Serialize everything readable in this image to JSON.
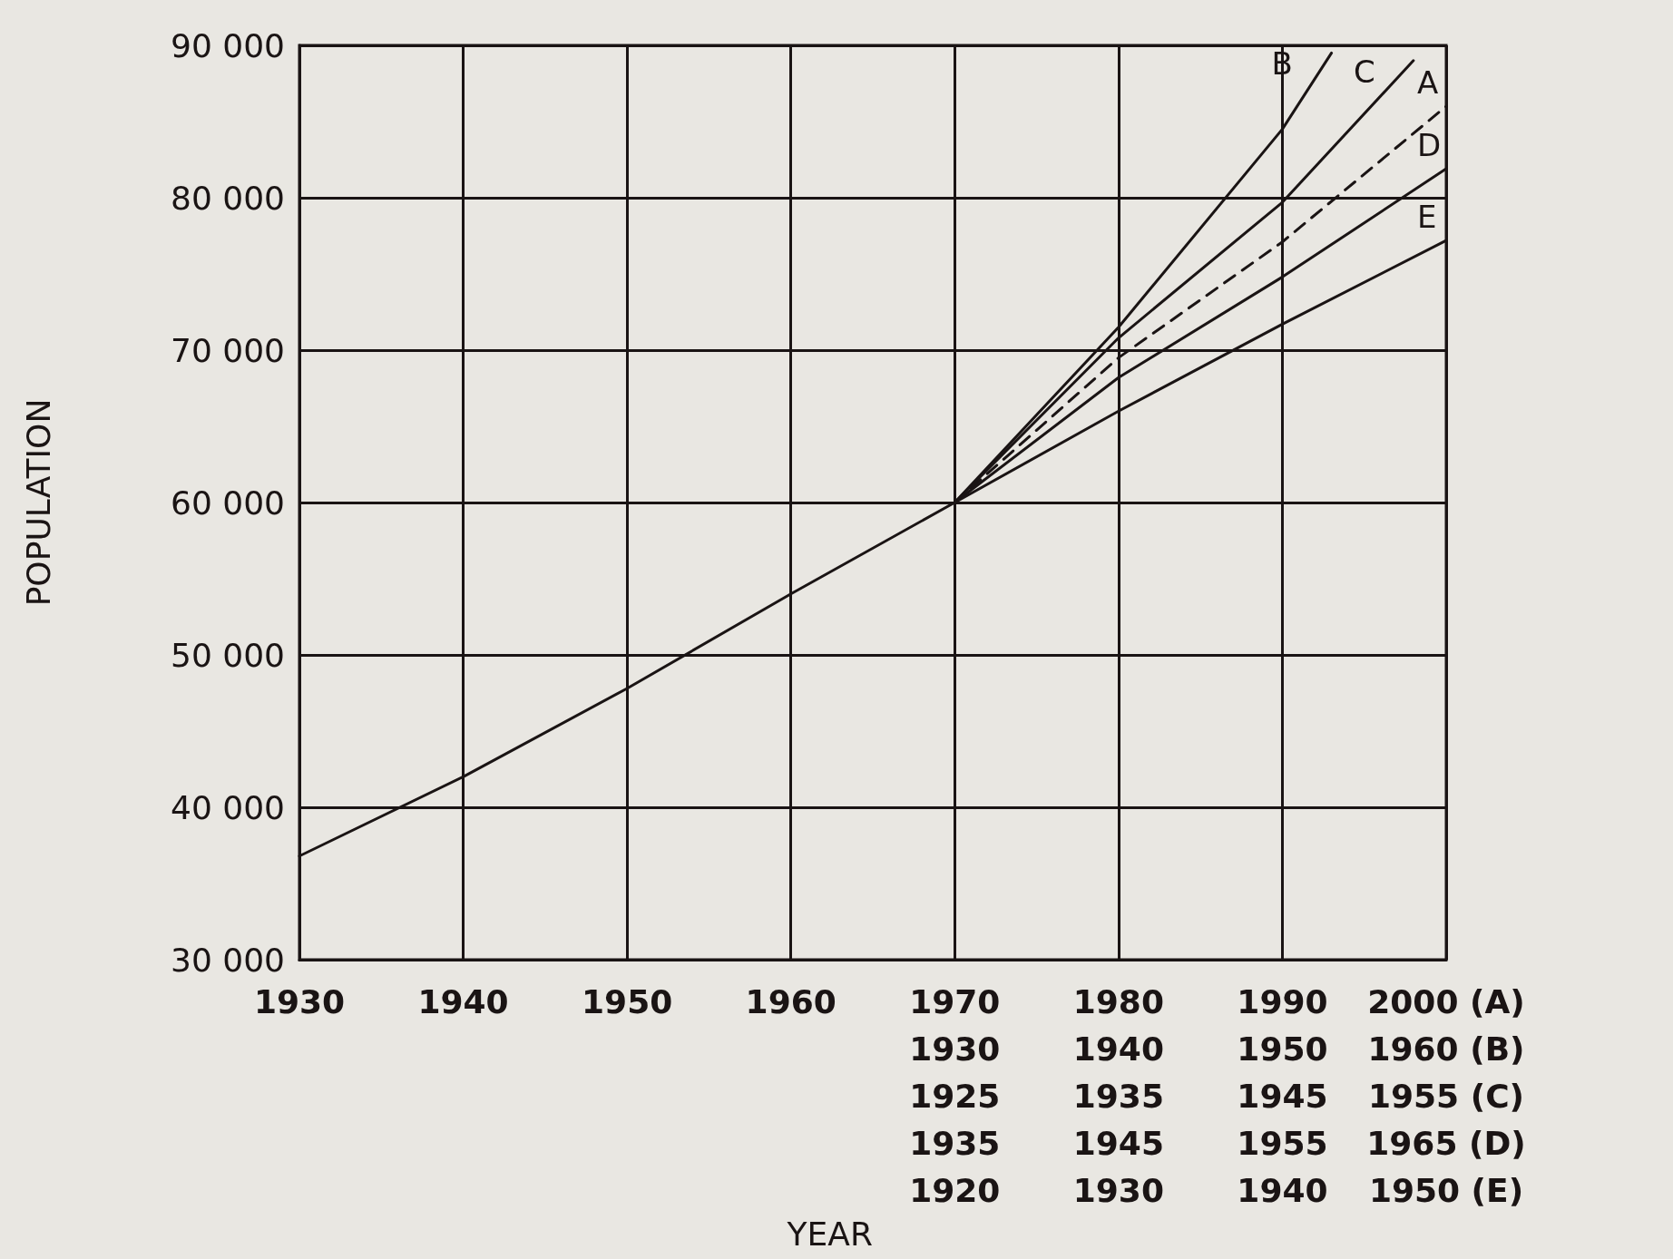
{
  "chart_data": {
    "type": "line",
    "xlabel": "YEAR",
    "ylabel": "POPULATION",
    "xlim": [
      1930,
      2000
    ],
    "xticks": [
      1930,
      1940,
      1950,
      1960,
      {
        "value": 1970,
        "label": "1970\n1930\n1925\n1935\n1920"
      },
      {
        "value": 1980,
        "label": "1980\n1940\n1935\n1945\n1930"
      },
      {
        "value": 1990,
        "label": "1990\n1950\n1945\n1955\n1940"
      },
      {
        "value": 2000,
        "label": "2000 (A)\n1960 (B)\n1955 (C)\n1965 (D)\n1950 (E)"
      }
    ],
    "ylim": [
      30000,
      90000
    ],
    "yticks": [
      {
        "value": 30000,
        "label": "30 000"
      },
      {
        "value": 40000,
        "label": "40 000"
      },
      {
        "value": 50000,
        "label": "50 000"
      },
      {
        "value": 60000,
        "label": "60 000"
      },
      {
        "value": 70000,
        "label": "70 000"
      },
      {
        "value": 80000,
        "label": "80 000"
      },
      {
        "value": 90000,
        "label": "90 000"
      }
    ],
    "grid": true,
    "marker": "none",
    "line_style": "solid",
    "series": [
      {
        "name": "B",
        "color": "#1a1414",
        "x": [
          1970,
          1980,
          1990,
          1993
        ],
        "values": [
          60000,
          71500,
          84500,
          89500
        ]
      },
      {
        "name": "C",
        "color": "#1a1414",
        "x": [
          1970,
          1980,
          1990,
          1998
        ],
        "values": [
          60000,
          70800,
          79700,
          89000
        ]
      },
      {
        "name": "A",
        "color": "#1a1414",
        "line_style": "dashed",
        "x": [
          1970,
          1980,
          1990,
          2000
        ],
        "values": [
          60000,
          69500,
          77100,
          86000
        ]
      },
      {
        "name": "D",
        "color": "#1a1414",
        "x": [
          1970,
          1980,
          1990,
          2000
        ],
        "values": [
          60000,
          68200,
          74800,
          81900
        ]
      },
      {
        "name": "E",
        "color": "#1a1414",
        "x": [
          1930,
          1940,
          1950,
          1960,
          1970,
          1980,
          1990,
          2000
        ],
        "values": [
          36800,
          42000,
          47800,
          54000,
          60000,
          66000,
          71700,
          77200
        ]
      }
    ]
  }
}
